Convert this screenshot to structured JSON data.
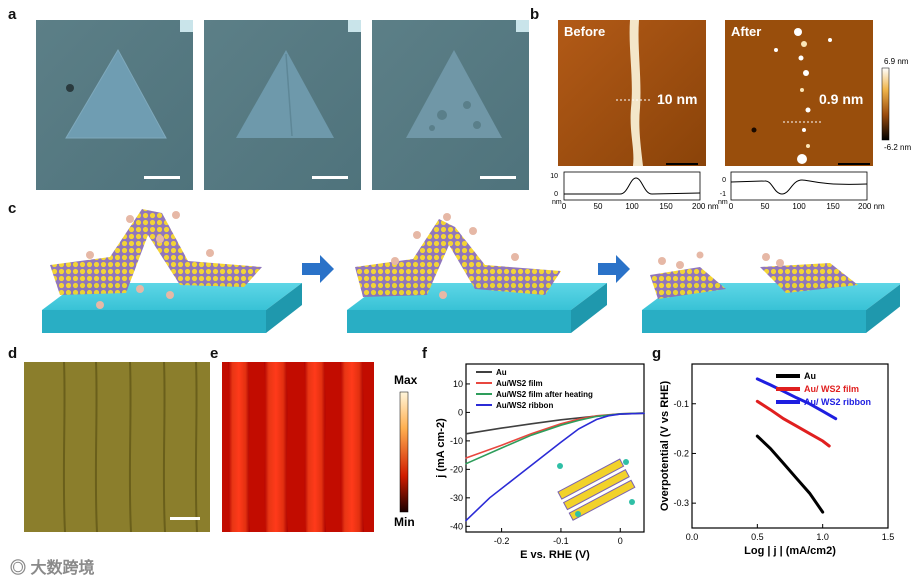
{
  "panel_labels": {
    "a": "a",
    "b": "b",
    "c": "c",
    "d": "d",
    "e": "e",
    "f": "f",
    "g": "g"
  },
  "afm": {
    "before": {
      "title": "Before",
      "height_label": "10 nm",
      "profile_yticks": [
        "10",
        "0"
      ],
      "profile_unit": "nm"
    },
    "after": {
      "title": "After",
      "height_label": "0.9 nm",
      "profile_yticks": [
        "0",
        "-1"
      ],
      "profile_unit": "nm"
    },
    "profile_xticks": [
      "0",
      "50",
      "100",
      "150",
      "200 nm"
    ],
    "colorbar": {
      "max": "6.9 nm",
      "min": "-6.2 nm"
    }
  },
  "map_e": {
    "colorbar": {
      "max": "Max",
      "min": "Min"
    }
  },
  "watermark": "大数跨境",
  "chart_data": [
    {
      "type": "line",
      "panel": "f",
      "xlabel": "E vs. RHE (V)",
      "ylabel": "j (mA cm-2)",
      "xlim": [
        -0.26,
        0.04
      ],
      "ylim": [
        -42,
        17
      ],
      "xticks": [
        "-0.2",
        "-0.1",
        "0"
      ],
      "yticks": [
        "10",
        "0",
        "-10",
        "-20",
        "-30",
        "-40"
      ],
      "legend_position": "top-left",
      "series": [
        {
          "name": "Au",
          "color": "#404040",
          "x": [
            -0.26,
            -0.2,
            -0.15,
            -0.1,
            -0.05,
            0,
            0.04
          ],
          "y": [
            -7.5,
            -5.5,
            -4,
            -2.6,
            -1.5,
            -0.6,
            -0.3
          ]
        },
        {
          "name": "Au/WS2 film",
          "color": "#e8473f",
          "x": [
            -0.26,
            -0.2,
            -0.15,
            -0.1,
            -0.07,
            -0.04,
            0,
            0.04
          ],
          "y": [
            -16,
            -11.5,
            -7.5,
            -4,
            -2.4,
            -1.2,
            -0.5,
            -0.2
          ]
        },
        {
          "name": "Au/WS2 film after heating",
          "color": "#2e9d5b",
          "x": [
            -0.26,
            -0.2,
            -0.15,
            -0.1,
            -0.07,
            -0.04,
            0,
            0.04
          ],
          "y": [
            -18,
            -12.5,
            -8,
            -4.5,
            -2.8,
            -1.4,
            -0.5,
            -0.2
          ]
        },
        {
          "name": "Au/WS2 ribbon",
          "color": "#2b2bd6",
          "x": [
            -0.26,
            -0.22,
            -0.18,
            -0.14,
            -0.1,
            -0.07,
            -0.04,
            -0.02,
            0,
            0.04
          ],
          "y": [
            -38,
            -30,
            -23.5,
            -17,
            -10.5,
            -5.8,
            -2.5,
            -1.2,
            -0.6,
            -0.3
          ]
        }
      ]
    },
    {
      "type": "line",
      "panel": "g",
      "xlabel": "Log | j | (mA/cm2)",
      "ylabel": "Overpotential (V vs RHE)",
      "xlim": [
        0,
        1.5
      ],
      "ylim": [
        -0.35,
        -0.02
      ],
      "xticks": [
        "0.0",
        "0.5",
        "1.0",
        "1.5"
      ],
      "yticks": [
        "-0.1",
        "-0.2",
        "-0.3"
      ],
      "legend_position": "top-right",
      "series": [
        {
          "name": "Au",
          "color": "#000000",
          "x": [
            0.5,
            0.6,
            0.7,
            0.8,
            0.9,
            1.0
          ],
          "y": [
            -0.165,
            -0.19,
            -0.22,
            -0.25,
            -0.28,
            -0.318
          ]
        },
        {
          "name": "Au/ WS2 film",
          "color": "#e01f1f",
          "x": [
            0.5,
            0.6,
            0.7,
            0.8,
            0.9,
            1.0,
            1.05
          ],
          "y": [
            -0.095,
            -0.112,
            -0.13,
            -0.145,
            -0.16,
            -0.175,
            -0.185
          ]
        },
        {
          "name": "Au/ WS2 ribbon",
          "color": "#1e1ee0",
          "x": [
            0.5,
            0.6,
            0.7,
            0.8,
            0.9,
            1.0,
            1.1
          ],
          "y": [
            -0.05,
            -0.062,
            -0.075,
            -0.088,
            -0.1,
            -0.115,
            -0.13
          ]
        }
      ]
    }
  ]
}
